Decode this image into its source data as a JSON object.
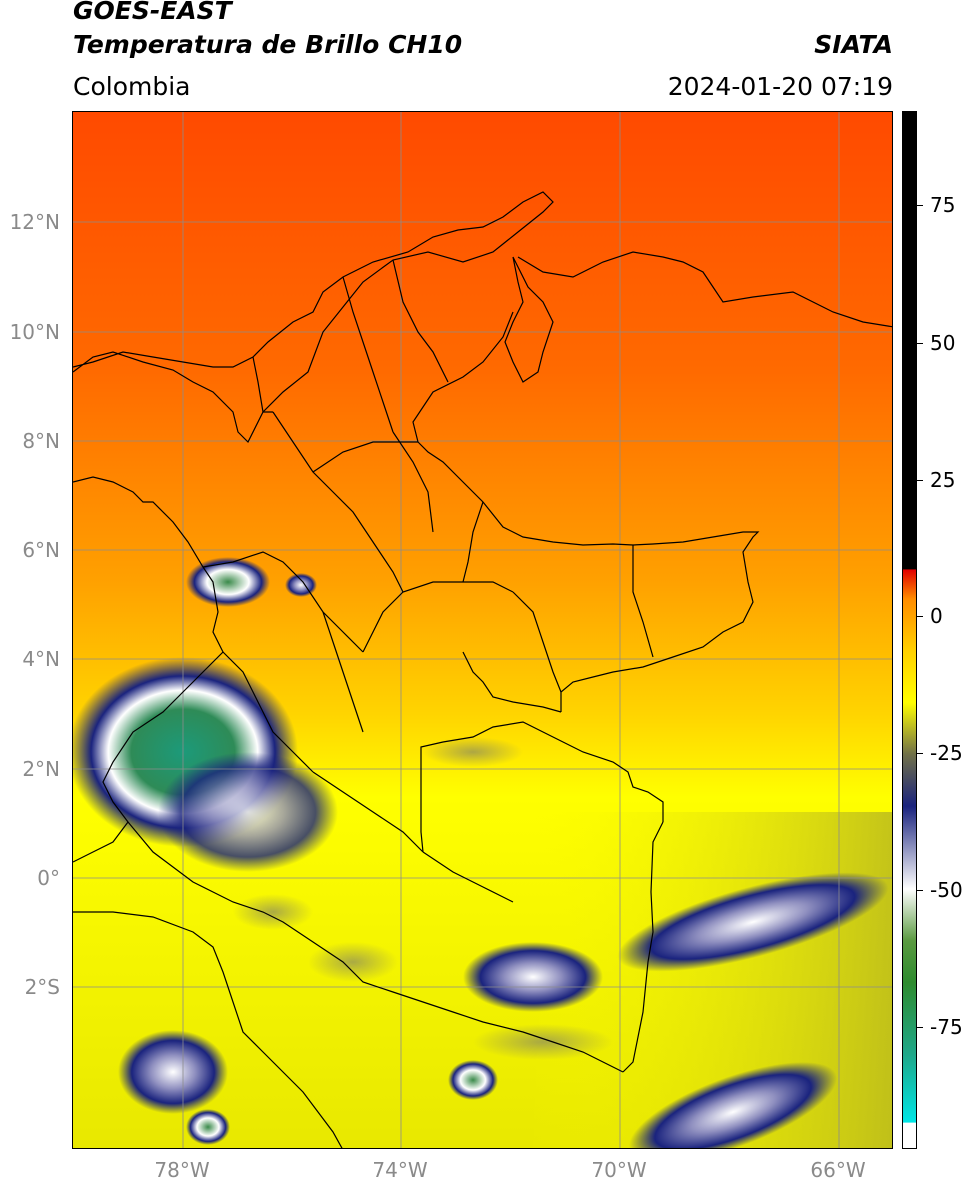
{
  "header": {
    "title_line1": "GOES-EAST",
    "title_line2": "Temperatura de Brillo CH10",
    "region": "Colombia",
    "brand": "SIATA",
    "datetime": "2024-01-20 07:19"
  },
  "map": {
    "lat_labels": [
      "12°N",
      "10°N",
      "8°N",
      "6°N",
      "4°N",
      "2°N",
      "0°",
      "2°S"
    ],
    "lon_labels": [
      "78°W",
      "74°W",
      "70°W",
      "66°W"
    ],
    "gridlines": true,
    "cloud_colors": {
      "warm_ocean": "#ff5a00",
      "warm_land": "#ffa800",
      "mid": "#ffff00",
      "cold_blue": "#1a237e",
      "very_cold": "#2e8b57"
    }
  },
  "colorbar": {
    "ticks": [
      "75",
      "50",
      "25",
      "0",
      "-25",
      "-50",
      "-75"
    ],
    "colors": [
      "#ffffff",
      "#00e5e5",
      "#1fa88a",
      "#2e8b2e",
      "#ffffff",
      "#1a237e",
      "#808040",
      "#ffff00",
      "#ffa000",
      "#ff4000",
      "#e00000",
      "#000000"
    ]
  }
}
